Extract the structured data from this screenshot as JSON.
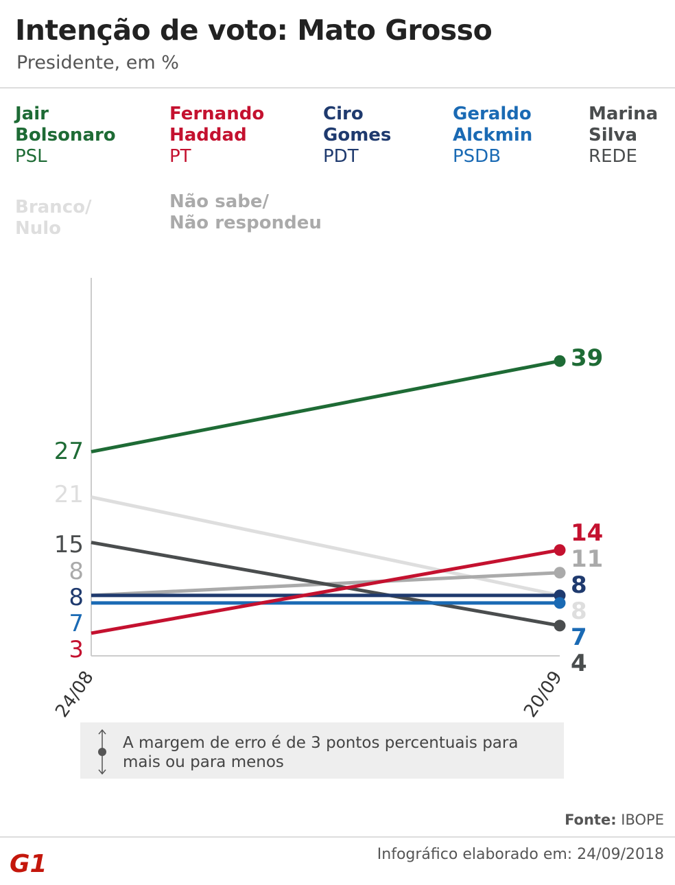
{
  "header": {
    "title": "Intenção de voto: Mato Grosso",
    "subtitle": "Presidente, em %"
  },
  "chart_data": {
    "type": "line",
    "title": "Intenção de voto: Mato Grosso",
    "subtitle": "Presidente, em %",
    "x": [
      "24/08",
      "20/09"
    ],
    "ylim": [
      0,
      50
    ],
    "grid": false,
    "legend_placement": "top",
    "series": [
      {
        "name": "Jair Bolsonaro",
        "party": "PSL",
        "color": "#1e6b35",
        "values": [
          27,
          39
        ]
      },
      {
        "name": "Fernando Haddad",
        "party": "PT",
        "color": "#c4112f",
        "values": [
          3,
          14
        ]
      },
      {
        "name": "Ciro Gomes",
        "party": "PDT",
        "color": "#1f3a6e",
        "values": [
          8,
          8
        ]
      },
      {
        "name": "Geraldo Alckmin",
        "party": "PSDB",
        "color": "#1a6ab4",
        "values": [
          7,
          7
        ]
      },
      {
        "name": "Marina Silva",
        "party": "REDE",
        "color": "#4a4d4e",
        "values": [
          15,
          4
        ]
      },
      {
        "name": "Branco/ Nulo",
        "party": "",
        "color": "#dedede",
        "values": [
          21,
          8
        ]
      },
      {
        "name": "Não sabe/ Não respondeu",
        "party": "",
        "color": "#aaaaaa",
        "values": [
          8,
          11
        ]
      }
    ]
  },
  "legend": [
    {
      "name": "Jair\nBolsonaro",
      "party": "PSL"
    },
    {
      "name": "Fernando\nHaddad",
      "party": "PT"
    },
    {
      "name": "Ciro\nGomes",
      "party": "PDT"
    },
    {
      "name": "Geraldo\nAlckmin",
      "party": "PSDB"
    },
    {
      "name": "Marina\nSilva",
      "party": "REDE"
    },
    {
      "name": "Branco/\nNulo",
      "party": ""
    },
    {
      "name": "Não sabe/\nNão respondeu",
      "party": ""
    }
  ],
  "note": {
    "text": "A margem de erro é de 3 pontos percentuais para mais ou para menos",
    "icon": "error-margin-icon"
  },
  "footer": {
    "source": "Fonte: IBOPE",
    "made": "Infográfico elaborado em: 24/09/2018",
    "logo": "G1"
  }
}
